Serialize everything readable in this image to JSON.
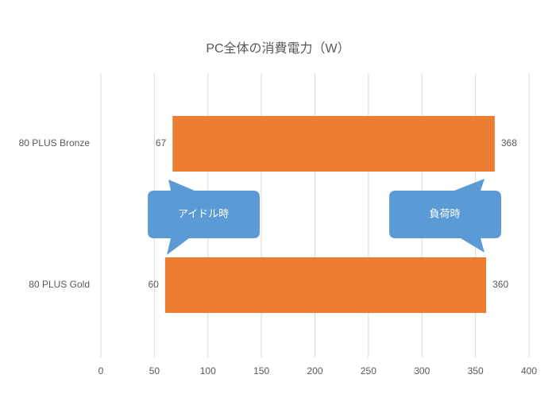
{
  "chart_data": {
    "type": "range-bar",
    "title": "PC全体の消費電力（W）",
    "categories": [
      "80 PLUS Bronze",
      "80 PLUS Gold"
    ],
    "low": [
      67,
      60
    ],
    "high": [
      368,
      360
    ],
    "color": "#ed7d31",
    "xlim": [
      0,
      400
    ],
    "xticks": [
      0,
      50,
      100,
      150,
      200,
      250,
      300,
      350,
      400
    ],
    "grid": true,
    "annotations": [
      "アイドル時",
      "負荷時"
    ],
    "annotation_color": "#5b9bd5"
  }
}
